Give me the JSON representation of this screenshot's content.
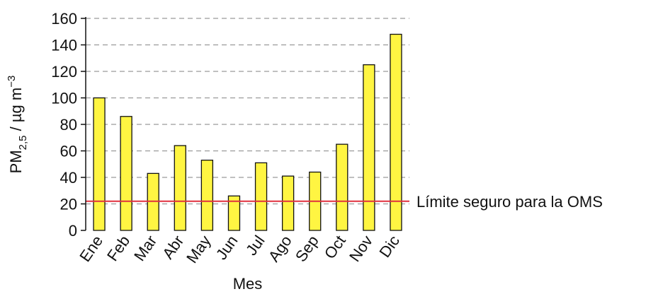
{
  "chart_data": {
    "type": "bar",
    "categories": [
      "Ene",
      "Feb",
      "Mar",
      "Abr",
      "May",
      "Jun",
      "Jul",
      "Ago",
      "Sep",
      "Oct",
      "Nov",
      "Dic"
    ],
    "values": [
      100,
      86,
      43,
      64,
      53,
      26,
      51,
      41,
      44,
      65,
      125,
      148
    ],
    "xlabel": "Mes",
    "ylabel": {
      "prefix": "PM",
      "subscript": "2,5",
      "unit": " / µg m",
      "superscript": "−3"
    },
    "ylim": [
      0,
      160
    ],
    "yticks": [
      "0",
      "20",
      "40",
      "60",
      "80",
      "100",
      "120",
      "140",
      "160"
    ],
    "grid": true,
    "bar_color": "#fff542",
    "threshold": {
      "value": 22,
      "label": "Límite seguro para la OMS",
      "color": "#e0313f"
    }
  }
}
